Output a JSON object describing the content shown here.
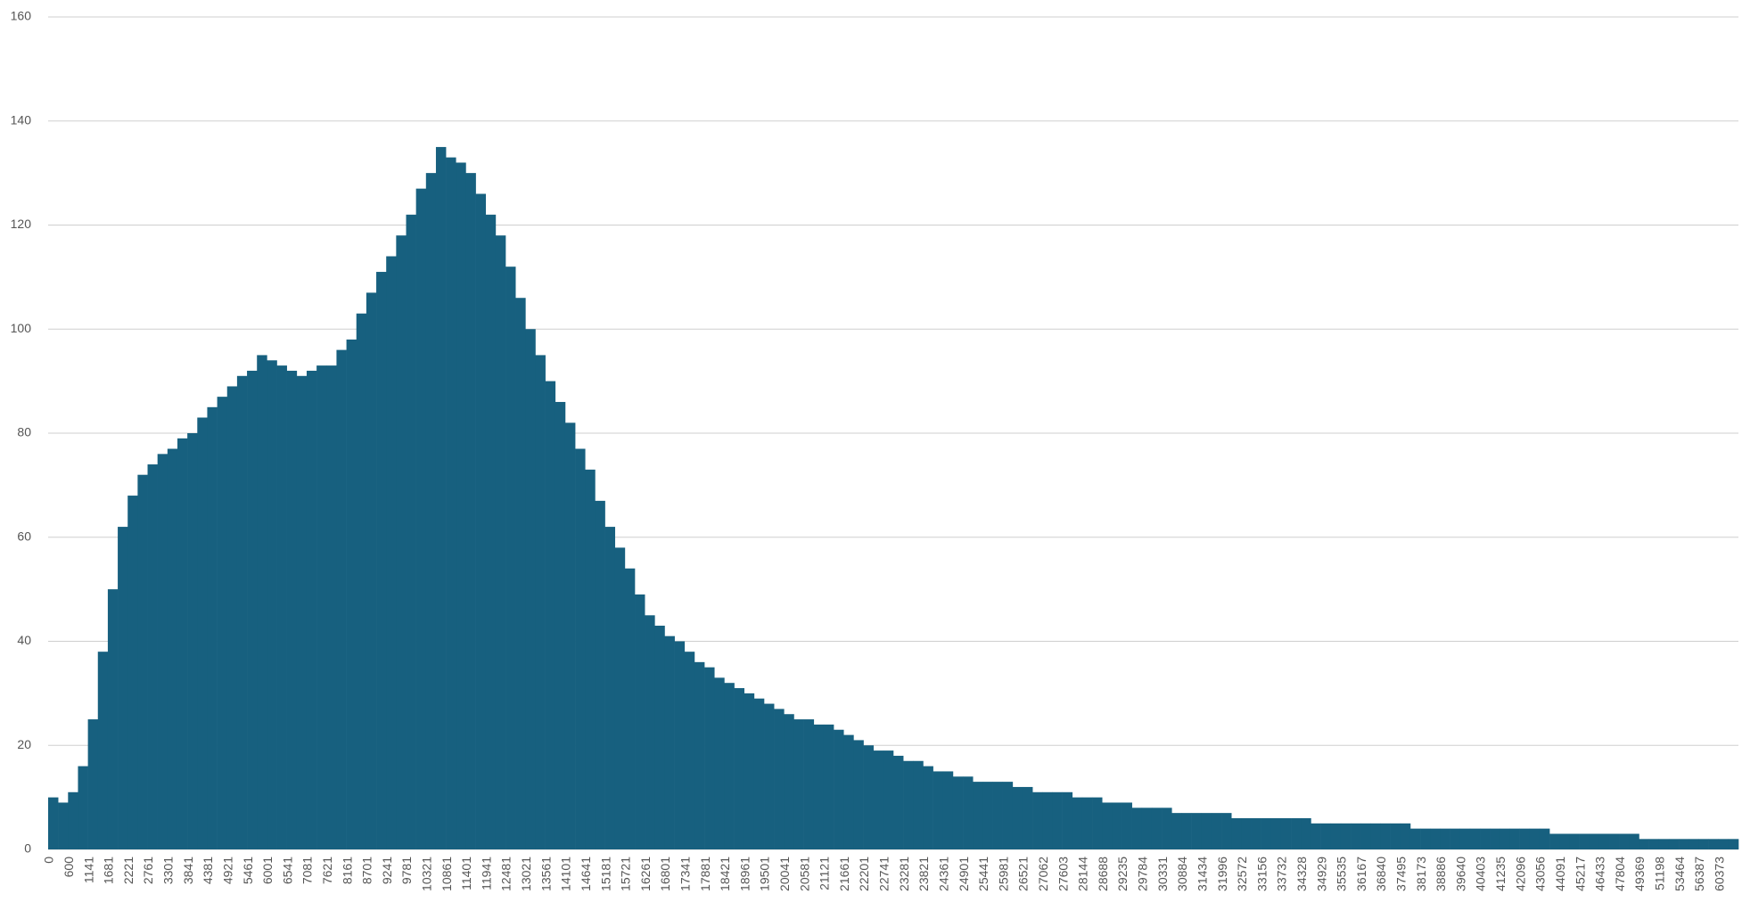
{
  "chart_data": {
    "type": "bar",
    "color": "#17607f",
    "grid": true,
    "ylim": [
      0,
      160
    ],
    "yticks": [
      0,
      20,
      40,
      60,
      80,
      100,
      120,
      140,
      160
    ],
    "categories": [
      "0",
      null,
      "600",
      null,
      "1141",
      null,
      "1681",
      null,
      "2221",
      null,
      "2761",
      null,
      "3301",
      null,
      "3841",
      null,
      "4381",
      null,
      "4921",
      null,
      "5461",
      null,
      "6001",
      null,
      "6541",
      null,
      "7081",
      null,
      "7621",
      null,
      "8161",
      null,
      "8701",
      null,
      "9241",
      null,
      "9781",
      null,
      "10321",
      null,
      "10861",
      null,
      "11401",
      null,
      "11941",
      null,
      "12481",
      null,
      "13021",
      null,
      "13561",
      null,
      "14101",
      null,
      "14641",
      null,
      "15181",
      null,
      "15721",
      null,
      "16261",
      null,
      "16801",
      null,
      "17341",
      null,
      "17881",
      null,
      "18421",
      null,
      "18961",
      null,
      "19501",
      null,
      "20041",
      null,
      "20581",
      null,
      "21121",
      null,
      "21661",
      null,
      "22201",
      null,
      "22741",
      null,
      "23281",
      null,
      "23821",
      null,
      "24361",
      null,
      "24901",
      null,
      "25441",
      null,
      "25981",
      null,
      "26521",
      null,
      "27062",
      null,
      "27603",
      null,
      "28144",
      null,
      "28688",
      null,
      "29235",
      null,
      "29784",
      null,
      "30331",
      null,
      "30884",
      null,
      "31434",
      null,
      "31996",
      null,
      "32572",
      null,
      "33156",
      null,
      "33732",
      null,
      "34328",
      null,
      "34929",
      null,
      "35535",
      null,
      "36167",
      null,
      "36840",
      null,
      "37495",
      null,
      "38173",
      null,
      "38886",
      null,
      "39640",
      null,
      "40403",
      null,
      "41235",
      null,
      "42096",
      null,
      "43056",
      null,
      "44091",
      null,
      "45217",
      null,
      "46433",
      null,
      "47804",
      null,
      "49369",
      null,
      "51198",
      null,
      "53464",
      null,
      "56387",
      null,
      "60373",
      null
    ],
    "values": [
      10,
      9,
      11,
      16,
      25,
      38,
      50,
      62,
      68,
      72,
      74,
      76,
      77,
      79,
      80,
      83,
      85,
      87,
      89,
      91,
      92,
      95,
      94,
      93,
      92,
      91,
      92,
      93,
      93,
      96,
      98,
      103,
      107,
      111,
      114,
      118,
      122,
      127,
      130,
      135,
      133,
      132,
      130,
      126,
      122,
      118,
      112,
      106,
      100,
      95,
      90,
      86,
      82,
      77,
      73,
      67,
      62,
      58,
      54,
      49,
      45,
      43,
      41,
      40,
      38,
      36,
      35,
      33,
      32,
      31,
      30,
      29,
      28,
      27,
      26,
      25,
      25,
      24,
      24,
      23,
      22,
      21,
      20,
      19,
      19,
      18,
      17,
      17,
      16,
      15,
      15,
      14,
      14,
      13,
      13,
      13,
      13,
      12,
      12,
      11,
      11,
      11,
      11,
      10,
      10,
      10,
      9,
      9,
      9,
      8,
      8,
      8,
      8,
      7,
      7,
      7,
      7,
      7,
      7,
      6,
      6,
      6,
      6,
      6,
      6,
      6,
      6,
      5,
      5,
      5,
      5,
      5,
      5,
      5,
      5,
      5,
      5,
      4,
      4,
      4,
      4,
      4,
      4,
      4,
      4,
      4,
      4,
      4,
      4,
      4,
      4,
      3,
      3,
      3,
      3,
      3,
      3,
      3,
      3,
      3,
      2,
      2,
      2,
      2,
      2,
      2,
      2,
      2,
      2,
      2
    ]
  }
}
